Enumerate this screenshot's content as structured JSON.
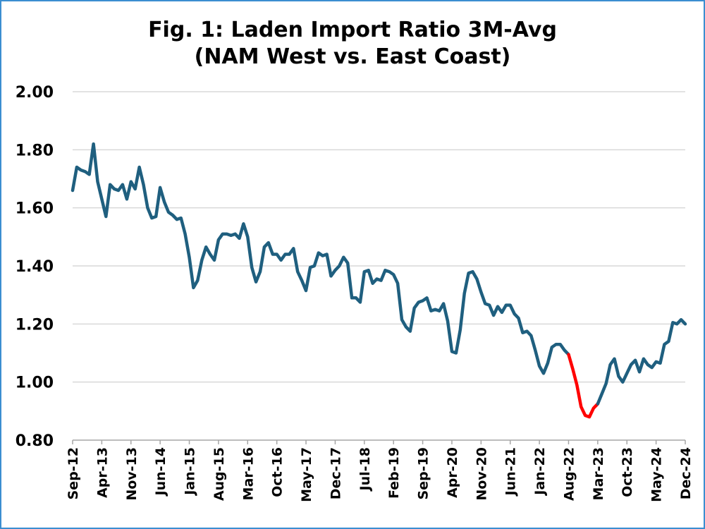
{
  "chart_data": {
    "type": "line",
    "title": "Fig. 1: Laden Import Ratio 3M-Avg",
    "subtitle": "(NAM West vs. East Coast)",
    "xlabel": "",
    "ylabel": "",
    "ylim": [
      0.8,
      2.0
    ],
    "yticks": [
      "0.80",
      "1.00",
      "1.20",
      "1.40",
      "1.60",
      "1.80",
      "2.00"
    ],
    "grid": "horizontal",
    "legend": "none",
    "xtick_labels": [
      "Sep-12",
      "Apr-13",
      "Nov-13",
      "Jun-14",
      "Jan-15",
      "Aug-15",
      "Mar-16",
      "Oct-16",
      "May-17",
      "Dec-17",
      "Jul-18",
      "Feb-19",
      "Sep-19",
      "Apr-20",
      "Nov-20",
      "Jun-21",
      "Jan-22",
      "Aug-22",
      "Mar-23",
      "Oct-23",
      "May-24",
      "Dec-24"
    ],
    "series": [
      {
        "color": "#1f5f7f",
        "highlight_color": "#ff0000",
        "highlight_range": [
          "Sep-22",
          "Mar-23"
        ],
        "points": [
          [
            "Sep-12",
            1.66
          ],
          [
            "Oct-12",
            1.74
          ],
          [
            "Nov-12",
            1.73
          ],
          [
            "Dec-12",
            1.725
          ],
          [
            "Jan-13",
            1.715
          ],
          [
            "Feb-13",
            1.82
          ],
          [
            "Mar-13",
            1.69
          ],
          [
            "Apr-13",
            1.63
          ],
          [
            "May-13",
            1.57
          ],
          [
            "Jun-13",
            1.68
          ],
          [
            "Jul-13",
            1.665
          ],
          [
            "Aug-13",
            1.66
          ],
          [
            "Sep-13",
            1.68
          ],
          [
            "Oct-13",
            1.63
          ],
          [
            "Nov-13",
            1.69
          ],
          [
            "Dec-13",
            1.665
          ],
          [
            "Jan-14",
            1.74
          ],
          [
            "Feb-14",
            1.68
          ],
          [
            "Mar-14",
            1.6
          ],
          [
            "Apr-14",
            1.565
          ],
          [
            "May-14",
            1.57
          ],
          [
            "Jun-14",
            1.67
          ],
          [
            "Jul-14",
            1.62
          ],
          [
            "Aug-14",
            1.585
          ],
          [
            "Sep-14",
            1.575
          ],
          [
            "Oct-14",
            1.56
          ],
          [
            "Nov-14",
            1.565
          ],
          [
            "Dec-14",
            1.51
          ],
          [
            "Jan-15",
            1.43
          ],
          [
            "Feb-15",
            1.325
          ],
          [
            "Mar-15",
            1.35
          ],
          [
            "Apr-15",
            1.42
          ],
          [
            "May-15",
            1.465
          ],
          [
            "Jun-15",
            1.44
          ],
          [
            "Jul-15",
            1.42
          ],
          [
            "Aug-15",
            1.49
          ],
          [
            "Sep-15",
            1.51
          ],
          [
            "Oct-15",
            1.51
          ],
          [
            "Nov-15",
            1.505
          ],
          [
            "Dec-15",
            1.51
          ],
          [
            "Jan-16",
            1.495
          ],
          [
            "Feb-16",
            1.545
          ],
          [
            "Mar-16",
            1.5
          ],
          [
            "Apr-16",
            1.395
          ],
          [
            "May-16",
            1.345
          ],
          [
            "Jun-16",
            1.38
          ],
          [
            "Jul-16",
            1.465
          ],
          [
            "Aug-16",
            1.48
          ],
          [
            "Sep-16",
            1.44
          ],
          [
            "Oct-16",
            1.44
          ],
          [
            "Nov-16",
            1.42
          ],
          [
            "Dec-16",
            1.44
          ],
          [
            "Jan-17",
            1.44
          ],
          [
            "Feb-17",
            1.46
          ],
          [
            "Mar-17",
            1.38
          ],
          [
            "Apr-17",
            1.35
          ],
          [
            "May-17",
            1.315
          ],
          [
            "Jun-17",
            1.395
          ],
          [
            "Jul-17",
            1.4
          ],
          [
            "Aug-17",
            1.445
          ],
          [
            "Sep-17",
            1.435
          ],
          [
            "Oct-17",
            1.44
          ],
          [
            "Nov-17",
            1.365
          ],
          [
            "Dec-17",
            1.385
          ],
          [
            "Jan-18",
            1.4
          ],
          [
            "Feb-18",
            1.43
          ],
          [
            "Mar-18",
            1.41
          ],
          [
            "Apr-18",
            1.29
          ],
          [
            "May-18",
            1.29
          ],
          [
            "Jun-18",
            1.275
          ],
          [
            "Jul-18",
            1.38
          ],
          [
            "Aug-18",
            1.385
          ],
          [
            "Sep-18",
            1.34
          ],
          [
            "Oct-18",
            1.355
          ],
          [
            "Nov-18",
            1.35
          ],
          [
            "Dec-18",
            1.385
          ],
          [
            "Jan-19",
            1.38
          ],
          [
            "Feb-19",
            1.37
          ],
          [
            "Mar-19",
            1.34
          ],
          [
            "Apr-19",
            1.215
          ],
          [
            "May-19",
            1.19
          ],
          [
            "Jun-19",
            1.175
          ],
          [
            "Jul-19",
            1.255
          ],
          [
            "Aug-19",
            1.275
          ],
          [
            "Sep-19",
            1.28
          ],
          [
            "Oct-19",
            1.29
          ],
          [
            "Nov-19",
            1.245
          ],
          [
            "Dec-19",
            1.25
          ],
          [
            "Jan-20",
            1.245
          ],
          [
            "Feb-20",
            1.27
          ],
          [
            "Mar-20",
            1.21
          ],
          [
            "Apr-20",
            1.105
          ],
          [
            "May-20",
            1.1
          ],
          [
            "Jun-20",
            1.18
          ],
          [
            "Jul-20",
            1.305
          ],
          [
            "Aug-20",
            1.375
          ],
          [
            "Sep-20",
            1.38
          ],
          [
            "Oct-20",
            1.355
          ],
          [
            "Nov-20",
            1.31
          ],
          [
            "Dec-20",
            1.27
          ],
          [
            "Jan-21",
            1.265
          ],
          [
            "Feb-21",
            1.23
          ],
          [
            "Mar-21",
            1.26
          ],
          [
            "Apr-21",
            1.24
          ],
          [
            "May-21",
            1.265
          ],
          [
            "Jun-21",
            1.265
          ],
          [
            "Jul-21",
            1.235
          ],
          [
            "Aug-21",
            1.22
          ],
          [
            "Sep-21",
            1.17
          ],
          [
            "Oct-21",
            1.175
          ],
          [
            "Nov-21",
            1.16
          ],
          [
            "Dec-21",
            1.11
          ],
          [
            "Jan-22",
            1.055
          ],
          [
            "Feb-22",
            1.03
          ],
          [
            "Mar-22",
            1.065
          ],
          [
            "Apr-22",
            1.12
          ],
          [
            "May-22",
            1.13
          ],
          [
            "Jun-22",
            1.13
          ],
          [
            "Jul-22",
            1.11
          ],
          [
            "Aug-22",
            1.095
          ],
          [
            "Sep-22",
            1.045
          ],
          [
            "Oct-22",
            0.99
          ],
          [
            "Nov-22",
            0.915
          ],
          [
            "Dec-22",
            0.885
          ],
          [
            "Jan-23",
            0.88
          ],
          [
            "Feb-23",
            0.91
          ],
          [
            "Mar-23",
            0.925
          ],
          [
            "Apr-23",
            0.96
          ],
          [
            "May-23",
            0.995
          ],
          [
            "Jun-23",
            1.06
          ],
          [
            "Jul-23",
            1.08
          ],
          [
            "Aug-23",
            1.02
          ],
          [
            "Sep-23",
            1.0
          ],
          [
            "Oct-23",
            1.03
          ],
          [
            "Nov-23",
            1.06
          ],
          [
            "Dec-23",
            1.075
          ],
          [
            "Jan-24",
            1.035
          ],
          [
            "Feb-24",
            1.08
          ],
          [
            "Mar-24",
            1.06
          ],
          [
            "Apr-24",
            1.05
          ],
          [
            "May-24",
            1.07
          ],
          [
            "Jun-24",
            1.065
          ],
          [
            "Jul-24",
            1.13
          ],
          [
            "Aug-24",
            1.14
          ],
          [
            "Sep-24",
            1.205
          ],
          [
            "Oct-24",
            1.2
          ],
          [
            "Nov-24",
            1.215
          ],
          [
            "Dec-24",
            1.2
          ]
        ]
      }
    ]
  }
}
